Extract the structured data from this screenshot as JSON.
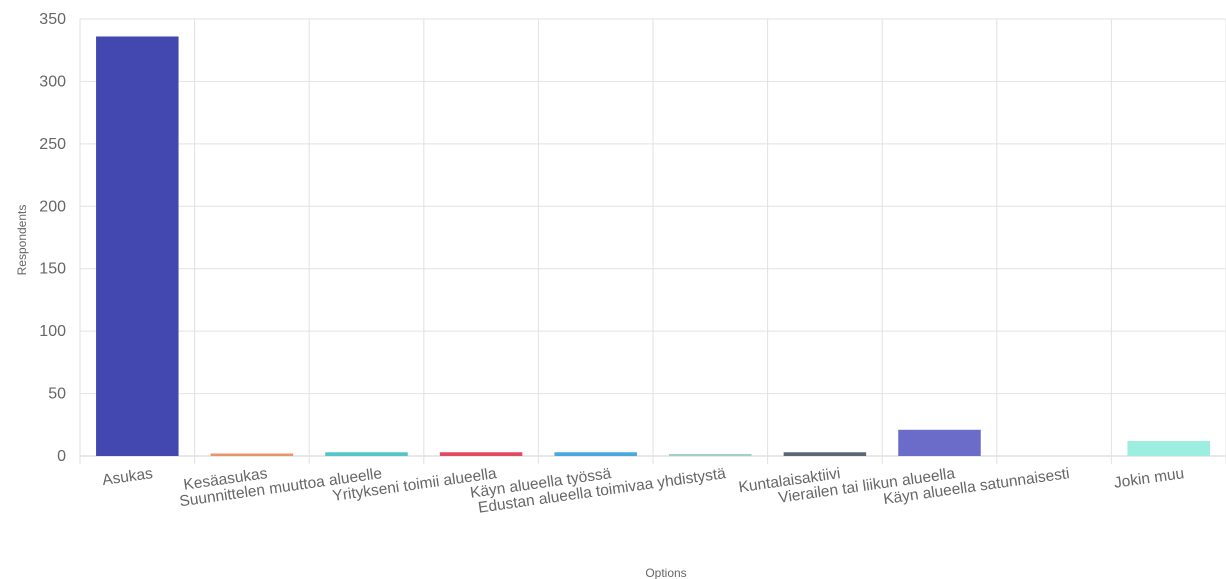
{
  "chart_data": {
    "type": "bar",
    "title": "",
    "xlabel": "Options",
    "ylabel": "Respondents",
    "ylim": [
      0,
      350
    ],
    "yticks": [
      0,
      50,
      100,
      150,
      200,
      250,
      300,
      350
    ],
    "grid": true,
    "legend": "none",
    "categories": [
      "Asukas",
      "Kesäasukas",
      "Suunnittelen muuttoa alueelle",
      "Yritykseni toimii alueella",
      "Käyn alueella työssä",
      "Edustan alueella toimivaa yhdistystä",
      "Kuntalaisaktiivi",
      "Vierailen tai liikun alueella",
      "Käyn alueella satunnaisesti",
      "Jokin muu"
    ],
    "values": [
      336,
      2,
      3,
      3,
      3,
      1,
      3,
      21,
      0,
      12
    ],
    "colors": [
      "#4348b0",
      "#e8956a",
      "#55c6c8",
      "#e24a63",
      "#4aa8e0",
      "#a3cfc4",
      "#5f6579",
      "#6b6bc9",
      "#9b8ed6",
      "#9beee0"
    ]
  }
}
